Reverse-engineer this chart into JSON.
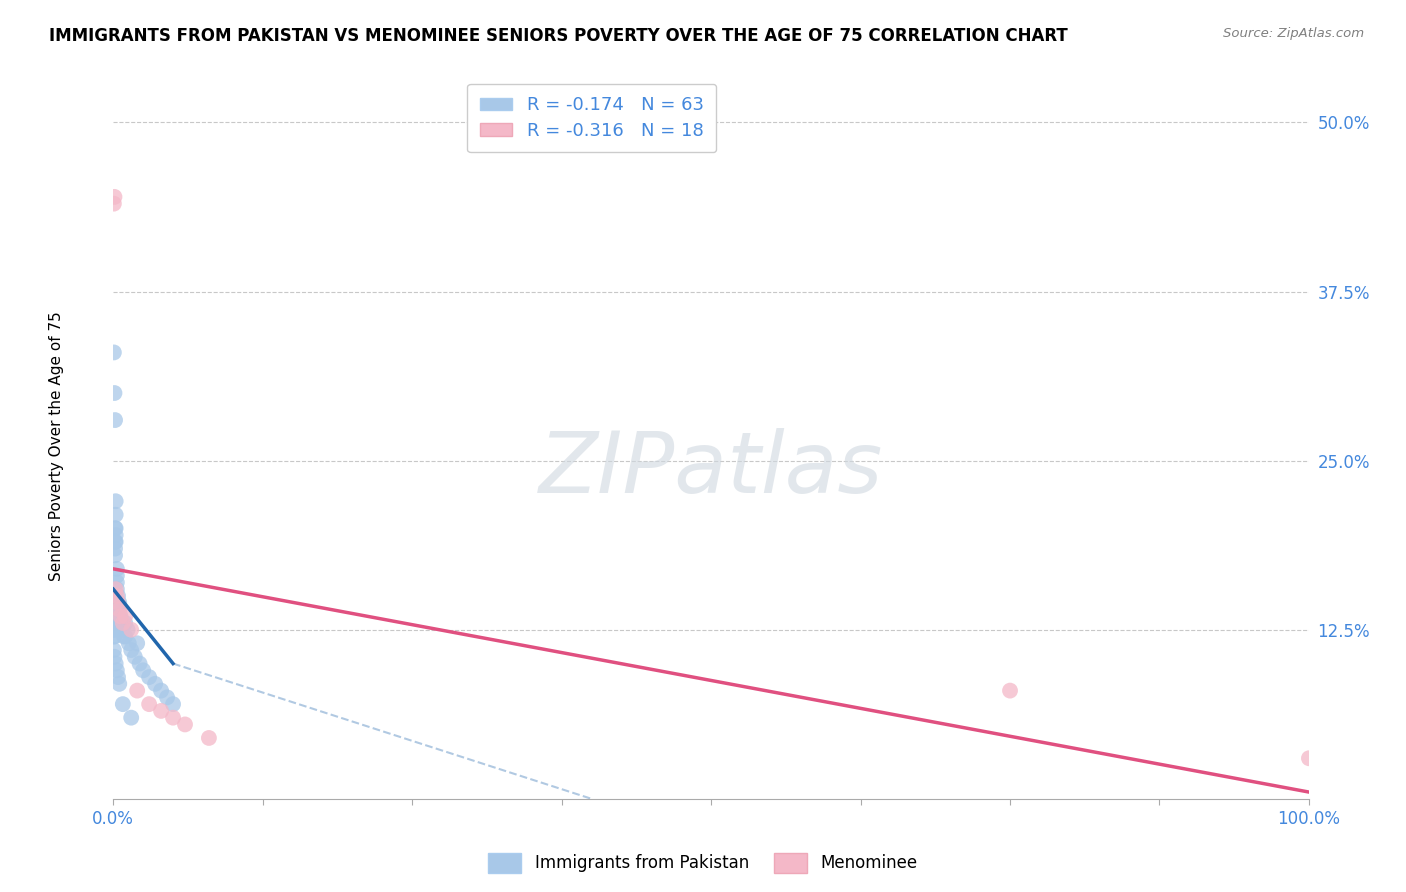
{
  "title": "IMMIGRANTS FROM PAKISTAN VS MENOMINEE SENIORS POVERTY OVER THE AGE OF 75 CORRELATION CHART",
  "source": "Source: ZipAtlas.com",
  "ylabel": "Seniors Poverty Over the Age of 75",
  "xlim": [
    0,
    100
  ],
  "ylim": [
    0,
    53
  ],
  "yticks": [
    0,
    12.5,
    25.0,
    37.5,
    50.0
  ],
  "ytick_labels": [
    "",
    "12.5%",
    "25.0%",
    "37.5%",
    "50.0%"
  ],
  "xticks": [
    0,
    12.5,
    25,
    37.5,
    50,
    62.5,
    75,
    87.5,
    100
  ],
  "xtick_labels_show": [
    "0.0%",
    "",
    "",
    "",
    "",
    "",
    "",
    "",
    "100.0%"
  ],
  "legend_blue_label": "R = -0.174   N = 63",
  "legend_pink_label": "R = -0.316   N = 18",
  "blue_color": "#a8c8e8",
  "pink_color": "#f4b8c8",
  "trend_blue_color": "#2166ac",
  "trend_pink_color": "#e05080",
  "watermark": "ZIPatlas",
  "background_color": "#ffffff",
  "grid_color": "#c8c8c8",
  "title_fontsize": 12,
  "axis_label_fontsize": 11,
  "blue_scatter_x": [
    0.05,
    0.05,
    0.05,
    0.05,
    0.05,
    0.05,
    0.05,
    0.1,
    0.1,
    0.1,
    0.1,
    0.1,
    0.1,
    0.15,
    0.15,
    0.15,
    0.15,
    0.2,
    0.2,
    0.2,
    0.2,
    0.2,
    0.3,
    0.3,
    0.3,
    0.3,
    0.4,
    0.4,
    0.4,
    0.5,
    0.5,
    0.5,
    0.6,
    0.6,
    0.7,
    0.7,
    0.8,
    0.9,
    1.0,
    1.0,
    1.2,
    1.3,
    1.5,
    1.8,
    2.0,
    2.2,
    2.5,
    3.0,
    3.5,
    4.0,
    4.5,
    5.0,
    0.05,
    0.1,
    0.15,
    0.05,
    0.1,
    0.2,
    0.3,
    0.4,
    0.5,
    0.8,
    1.5
  ],
  "blue_scatter_y": [
    15.0,
    14.5,
    14.0,
    13.5,
    13.0,
    12.5,
    12.0,
    14.5,
    14.0,
    13.5,
    13.0,
    12.5,
    12.0,
    20.0,
    19.0,
    18.5,
    18.0,
    22.0,
    21.0,
    20.0,
    19.5,
    19.0,
    17.0,
    16.5,
    16.0,
    15.5,
    15.0,
    14.5,
    14.0,
    14.5,
    14.0,
    13.5,
    13.5,
    13.0,
    13.0,
    12.5,
    12.5,
    12.0,
    13.0,
    12.0,
    12.5,
    11.5,
    11.0,
    10.5,
    11.5,
    10.0,
    9.5,
    9.0,
    8.5,
    8.0,
    7.5,
    7.0,
    33.0,
    30.0,
    28.0,
    11.0,
    10.5,
    10.0,
    9.5,
    9.0,
    8.5,
    7.0,
    6.0
  ],
  "pink_scatter_x": [
    0.05,
    0.1,
    0.2,
    0.3,
    0.4,
    0.5,
    0.6,
    0.8,
    1.0,
    1.5,
    2.0,
    3.0,
    4.0,
    5.0,
    6.0,
    8.0,
    75.0,
    100.0
  ],
  "pink_scatter_y": [
    44.0,
    44.5,
    15.5,
    15.0,
    14.5,
    14.0,
    13.5,
    13.0,
    13.5,
    12.5,
    8.0,
    7.0,
    6.5,
    6.0,
    5.5,
    4.5,
    8.0,
    3.0
  ],
  "blue_trend": [
    0.0,
    5.0,
    15.5,
    10.0
  ],
  "blue_dash": [
    5.0,
    40.0,
    10.0,
    0.0
  ],
  "pink_trend": [
    0.0,
    100.0,
    17.0,
    0.5
  ]
}
